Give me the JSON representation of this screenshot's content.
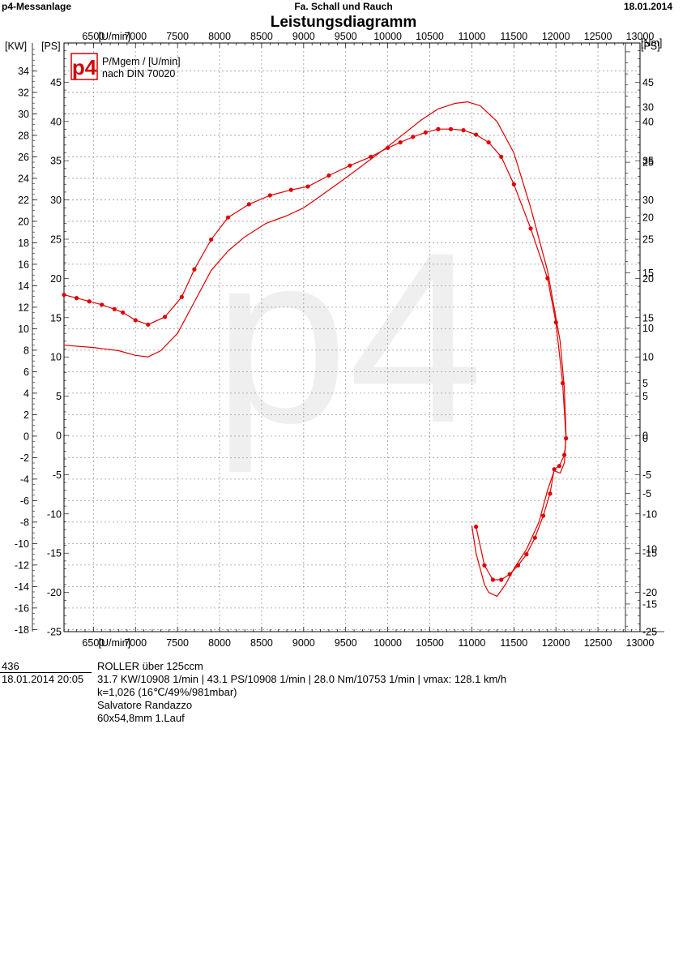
{
  "header": {
    "left": "p4-Messanlage",
    "center": "Fa. Schall und Rauch",
    "right": "18.01.2014"
  },
  "chart_data": {
    "type": "line",
    "title": "Leistungsdiagramm",
    "xlabel": "[U/min]",
    "xlim": [
      6150,
      13000
    ],
    "x_ticks": [
      6500,
      7000,
      7500,
      8000,
      8500,
      9000,
      9500,
      10000,
      10500,
      11000,
      11500,
      12000,
      12500,
      13000
    ],
    "axes": {
      "kw": {
        "label": "[KW]",
        "ylim": [
          -18.2,
          36.6
        ],
        "ticks": [
          -18,
          -16,
          -14,
          -12,
          -10,
          -8,
          -6,
          -4,
          -2,
          0,
          2,
          4,
          6,
          8,
          10,
          12,
          14,
          16,
          18,
          20,
          22,
          24,
          26,
          28,
          30,
          32,
          34
        ]
      },
      "ps": {
        "label": "[PS]",
        "ylim": [
          -25,
          50
        ],
        "ticks": [
          -25,
          -20,
          -15,
          -10,
          -5,
          0,
          5,
          10,
          15,
          20,
          25,
          30,
          35,
          40,
          45
        ]
      },
      "nm": {
        "label": "[Nm]",
        "ylim": [
          -17.5,
          35.8
        ],
        "ticks": [
          -15,
          -10,
          -5,
          0,
          5,
          10,
          15,
          20,
          25,
          30
        ]
      }
    },
    "grid": true,
    "legend": {
      "line1": "P/Mgem / [U/min]",
      "line2": "nach DIN 70020"
    },
    "logo_text": "p4",
    "watermark": "p4",
    "colors": {
      "curve": "#e00000",
      "grid": "#9a9a9a",
      "logo": "#d40000"
    },
    "series": [
      {
        "axis": "ps",
        "marker": "none",
        "points": [
          [
            6150,
            11.5
          ],
          [
            6500,
            11.2
          ],
          [
            6800,
            10.8
          ],
          [
            7000,
            10.2
          ],
          [
            7150,
            10.0
          ],
          [
            7300,
            10.8
          ],
          [
            7500,
            13.0
          ],
          [
            7700,
            17.0
          ],
          [
            7900,
            21.0
          ],
          [
            8100,
            23.5
          ],
          [
            8300,
            25.3
          ],
          [
            8550,
            27.0
          ],
          [
            8800,
            28.0
          ],
          [
            9000,
            29.0
          ],
          [
            9200,
            30.5
          ],
          [
            9500,
            32.8
          ],
          [
            9750,
            34.8
          ],
          [
            10000,
            36.8
          ],
          [
            10200,
            38.5
          ],
          [
            10400,
            40.2
          ],
          [
            10600,
            41.6
          ],
          [
            10800,
            42.3
          ],
          [
            10950,
            42.5
          ],
          [
            11100,
            42.0
          ],
          [
            11300,
            40.0
          ],
          [
            11500,
            36.0
          ],
          [
            11700,
            29.0
          ],
          [
            11900,
            21.0
          ],
          [
            12050,
            12.0
          ],
          [
            12100,
            6.0
          ],
          [
            12120,
            0.0
          ],
          [
            12100,
            -3.5
          ],
          [
            12050,
            -4.8
          ],
          [
            11980,
            -4.5
          ],
          [
            11900,
            -7.0
          ],
          [
            11800,
            -11.0
          ],
          [
            11650,
            -14.5
          ],
          [
            11500,
            -17.0
          ],
          [
            11400,
            -19.0
          ],
          [
            11300,
            -20.5
          ],
          [
            11200,
            -20.0
          ],
          [
            11150,
            -19.0
          ],
          [
            11100,
            -17.0
          ],
          [
            11050,
            -15.0
          ],
          [
            11000,
            -11.5
          ]
        ]
      },
      {
        "axis": "nm",
        "marker": "dot",
        "points": [
          [
            6150,
            13.0
          ],
          [
            6300,
            12.7
          ],
          [
            6450,
            12.4
          ],
          [
            6600,
            12.1
          ],
          [
            6750,
            11.7
          ],
          [
            6850,
            11.4
          ],
          [
            7000,
            10.7
          ],
          [
            7150,
            10.3
          ],
          [
            7350,
            11.0
          ],
          [
            7550,
            12.8
          ],
          [
            7700,
            15.3
          ],
          [
            7900,
            18.0
          ],
          [
            8100,
            20.0
          ],
          [
            8350,
            21.2
          ],
          [
            8600,
            22.0
          ],
          [
            8850,
            22.5
          ],
          [
            9050,
            22.8
          ],
          [
            9300,
            23.8
          ],
          [
            9550,
            24.7
          ],
          [
            9800,
            25.5
          ],
          [
            10000,
            26.3
          ],
          [
            10150,
            26.8
          ],
          [
            10300,
            27.3
          ],
          [
            10450,
            27.7
          ],
          [
            10600,
            28.0
          ],
          [
            10750,
            28.0
          ],
          [
            10900,
            27.9
          ],
          [
            11050,
            27.5
          ],
          [
            11200,
            26.8
          ],
          [
            11350,
            25.5
          ],
          [
            11500,
            23.0
          ],
          [
            11700,
            19.0
          ],
          [
            11900,
            14.5
          ],
          [
            12000,
            10.5
          ],
          [
            12080,
            5.0
          ],
          [
            12120,
            0.0
          ],
          [
            12100,
            -1.5
          ],
          [
            12040,
            -2.5
          ],
          [
            11980,
            -2.8
          ],
          [
            11930,
            -5.0
          ],
          [
            11850,
            -7.0
          ],
          [
            11750,
            -9.0
          ],
          [
            11650,
            -10.5
          ],
          [
            11550,
            -11.5
          ],
          [
            11450,
            -12.3
          ],
          [
            11350,
            -12.8
          ],
          [
            11250,
            -12.8
          ],
          [
            11150,
            -11.5
          ],
          [
            11050,
            -8.0
          ]
        ]
      }
    ]
  },
  "info": {
    "id": "436",
    "datetime": "18.01.2014  20:05",
    "vehicle": "ROLLER über 125ccm",
    "results": "31.7 KW/10908 1/min  |  43.1 PS/10908 1/min  |  28.0 Nm/10753 1/min | vmax: 128.1 km/h",
    "correction": "k=1,026 (16℃/49%/981mbar)",
    "operator": "Salvatore Randazzo",
    "bore": "60x54,8mm 1.Lauf"
  }
}
